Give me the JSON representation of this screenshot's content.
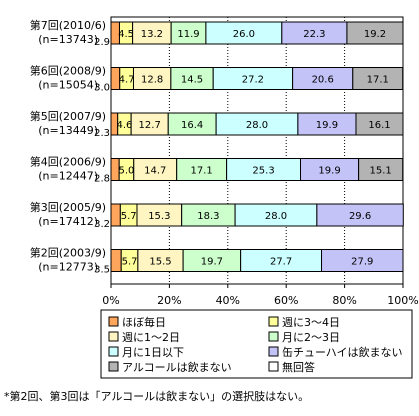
{
  "chart_data": {
    "type": "bar",
    "orientation": "horizontal",
    "stacked": true,
    "percent": true,
    "categories": [
      [
        "第7回(2010/6)",
        "(n=13743)"
      ],
      [
        "第6回(2008/9)",
        "(n=15054)"
      ],
      [
        "第5回(2007/9)",
        "(n=13449)"
      ],
      [
        "第4回(2006/9)",
        "(n=12447)"
      ],
      [
        "第3回(2005/9)",
        "(n=17412)"
      ],
      [
        "第2回(2003/9)",
        "(n=12773)"
      ]
    ],
    "series": [
      {
        "name": "ほぼ毎日",
        "color": "#ffa65c",
        "values": [
          2.9,
          3.0,
          2.3,
          2.8,
          3.2,
          3.5
        ]
      },
      {
        "name": "週に3～4日",
        "color": "#ffff99",
        "values": [
          4.5,
          4.7,
          4.6,
          5.0,
          5.7,
          5.7
        ]
      },
      {
        "name": "週に1～2日",
        "color": "#fff5c2",
        "values": [
          13.2,
          12.8,
          12.7,
          14.7,
          15.3,
          15.5
        ]
      },
      {
        "name": "月に2～3日",
        "color": "#ccffcc",
        "values": [
          11.9,
          14.5,
          16.4,
          17.1,
          18.3,
          19.7
        ]
      },
      {
        "name": "月に1日以下",
        "color": "#ccffff",
        "values": [
          26.0,
          27.2,
          28.0,
          25.3,
          28.0,
          27.7
        ]
      },
      {
        "name": "缶チューハイは飲まない",
        "color": "#c3c3f7",
        "values": [
          22.3,
          20.6,
          19.9,
          19.9,
          29.6,
          27.9
        ]
      },
      {
        "name": "アルコールは飲まない",
        "color": "#b3b3b3",
        "values": [
          19.2,
          17.1,
          16.1,
          15.1,
          null,
          null
        ]
      },
      {
        "name": "無回答",
        "color": "#ffffff",
        "values": [
          0,
          0,
          0,
          0,
          0,
          0
        ]
      }
    ],
    "xaxis": {
      "ticks": [
        "0%",
        "20%",
        "40%",
        "60%",
        "80%",
        "100%"
      ],
      "range": [
        0,
        100
      ]
    },
    "grid": true,
    "legend_position": "bottom"
  },
  "footnote": "*第2回、第3回は「アルコールは飲まない」の選択肢はない。"
}
